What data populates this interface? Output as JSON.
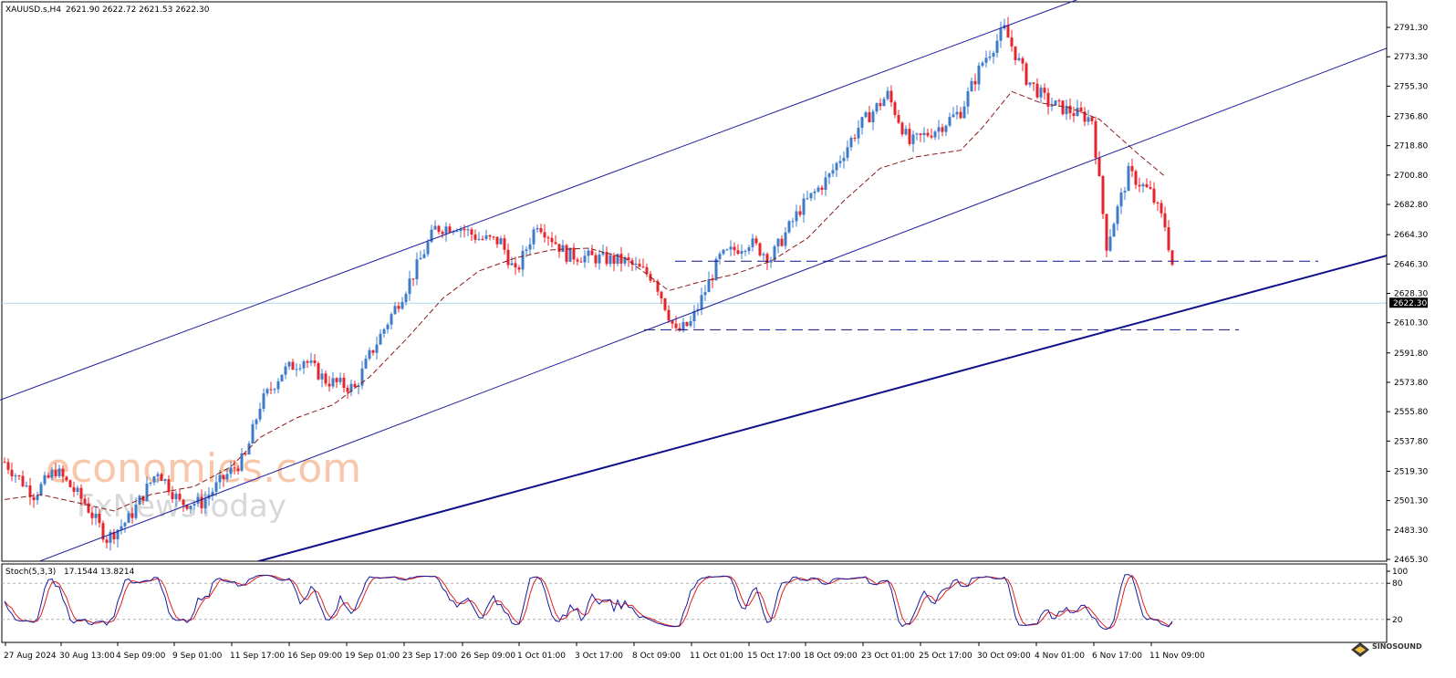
{
  "header": {
    "symbol": "XAUUSD.s,H4",
    "ohlc": "2621.90 2622.72 2621.53 2622.30"
  },
  "stoch_header": {
    "label": "Stoch(5,3,3)",
    "values": "17.1544 13.8214"
  },
  "current_price_tag": "2622.30",
  "watermark": {
    "line1": "economies.com",
    "line2": "FxNewsToday"
  },
  "badge": {
    "text": "SINOSOUND"
  },
  "colors": {
    "bull": "#3d7cc9",
    "bear": "#e4252b",
    "ma": "#8b1a1a",
    "channel": "#1f1f9e",
    "support": "#10108a",
    "dashed": "#10108a",
    "price_line": "#a8d8e8",
    "stoch_main": "#1a1aa0",
    "stoch_signal": "#e02020"
  },
  "chart_data": {
    "type": "candlestick",
    "title": "XAUUSD.s,H4",
    "y_axis": {
      "ticks": [
        "2791.30",
        "2773.30",
        "2755.30",
        "2736.80",
        "2718.80",
        "2700.80",
        "2682.80",
        "2664.30",
        "2646.30",
        "2628.30",
        "2610.30",
        "2591.80",
        "2573.80",
        "2555.80",
        "2537.80",
        "2519.30",
        "2501.30",
        "2483.30",
        "2465.30"
      ],
      "range": [
        2462,
        2800
      ]
    },
    "x_axis": {
      "ticks": [
        "27 Aug 2024",
        "30 Aug 13:00",
        "4 Sep 09:00",
        "9 Sep 01:00",
        "11 Sep 17:00",
        "16 Sep 09:00",
        "19 Sep 01:00",
        "23 Sep 17:00",
        "26 Sep 09:00",
        "1 Oct 01:00",
        "3 Oct 17:00",
        "8 Oct 09:00",
        "11 Oct 01:00",
        "15 Oct 17:00",
        "18 Oct 09:00",
        "23 Oct 01:00",
        "25 Oct 17:00",
        "30 Oct 09:00",
        "4 Nov 01:00",
        "6 Nov 17:00",
        "11 Nov 09:00"
      ]
    },
    "bars_total": 300,
    "price_path": [
      [
        0,
        2525
      ],
      [
        8,
        2505
      ],
      [
        14,
        2520
      ],
      [
        22,
        2500
      ],
      [
        28,
        2478
      ],
      [
        34,
        2490
      ],
      [
        42,
        2520
      ],
      [
        48,
        2500
      ],
      [
        54,
        2500
      ],
      [
        60,
        2515
      ],
      [
        66,
        2528
      ],
      [
        70,
        2560
      ],
      [
        76,
        2580
      ],
      [
        82,
        2588
      ],
      [
        88,
        2575
      ],
      [
        96,
        2570
      ],
      [
        100,
        2590
      ],
      [
        106,
        2615
      ],
      [
        112,
        2640
      ],
      [
        118,
        2668
      ],
      [
        124,
        2670
      ],
      [
        130,
        2662
      ],
      [
        136,
        2660
      ],
      [
        140,
        2640
      ],
      [
        146,
        2672
      ],
      [
        154,
        2652
      ],
      [
        162,
        2650
      ],
      [
        170,
        2648
      ],
      [
        178,
        2638
      ],
      [
        184,
        2604
      ],
      [
        188,
        2610
      ],
      [
        196,
        2650
      ],
      [
        204,
        2660
      ],
      [
        210,
        2650
      ],
      [
        218,
        2680
      ],
      [
        226,
        2700
      ],
      [
        234,
        2730
      ],
      [
        242,
        2750
      ],
      [
        248,
        2720
      ],
      [
        256,
        2730
      ],
      [
        262,
        2740
      ],
      [
        268,
        2770
      ],
      [
        274,
        2790
      ],
      [
        280,
        2760
      ],
      [
        286,
        2745
      ],
      [
        292,
        2740
      ],
      [
        298,
        2735
      ],
      [
        302,
        2658
      ],
      [
        308,
        2702
      ],
      [
        314,
        2690
      ],
      [
        318,
        2670
      ],
      [
        322,
        2622
      ]
    ],
    "ma_path": [
      [
        0,
        2502
      ],
      [
        10,
        2505
      ],
      [
        20,
        2500
      ],
      [
        30,
        2495
      ],
      [
        40,
        2505
      ],
      [
        52,
        2510
      ],
      [
        62,
        2522
      ],
      [
        70,
        2540
      ],
      [
        80,
        2552
      ],
      [
        90,
        2560
      ],
      [
        100,
        2577
      ],
      [
        110,
        2600
      ],
      [
        120,
        2625
      ],
      [
        130,
        2642
      ],
      [
        140,
        2650
      ],
      [
        150,
        2655
      ],
      [
        160,
        2656
      ],
      [
        170,
        2650
      ],
      [
        176,
        2640
      ],
      [
        182,
        2630
      ],
      [
        190,
        2635
      ],
      [
        200,
        2640
      ],
      [
        210,
        2648
      ],
      [
        220,
        2662
      ],
      [
        230,
        2685
      ],
      [
        240,
        2705
      ],
      [
        250,
        2712
      ],
      [
        262,
        2716
      ],
      [
        268,
        2730
      ],
      [
        276,
        2752
      ],
      [
        284,
        2745
      ],
      [
        292,
        2742
      ],
      [
        300,
        2735
      ],
      [
        310,
        2715
      ],
      [
        318,
        2700
      ]
    ],
    "stochastic": {
      "name": "Stoch(5,3,3)",
      "main": 17.1544,
      "signal": 13.8214,
      "levels": [
        20,
        80
      ],
      "range": [
        0,
        100
      ]
    },
    "lines": {
      "channel_upper": [
        [
          0,
          2564
        ],
        [
          284,
          2800
        ]
      ],
      "channel_lower": [
        [
          0,
          2456
        ],
        [
          310,
          2720
        ]
      ],
      "support_trend": [
        [
          0,
          2422
        ],
        [
          340,
          2628
        ]
      ],
      "dashed_resistance": 2648,
      "dashed_support": 2606,
      "current_price": 2622.3
    }
  }
}
